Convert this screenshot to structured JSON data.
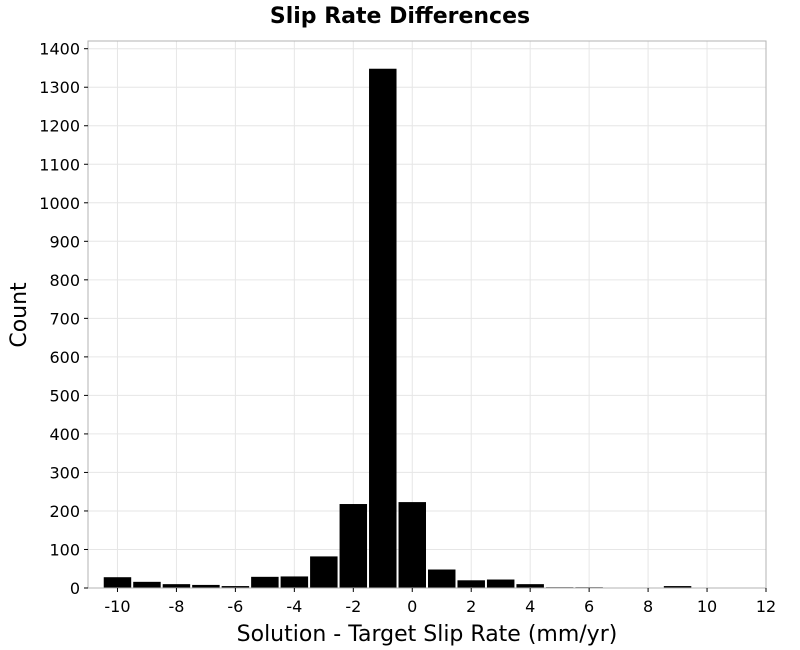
{
  "chart_data": {
    "type": "bar",
    "title": "Slip Rate Differences",
    "xlabel": "Solution - Target Slip Rate (mm/yr)",
    "ylabel": "Count",
    "xlim": [
      -11,
      12
    ],
    "ylim": [
      0,
      1420
    ],
    "x_ticks": [
      -10,
      -8,
      -6,
      -4,
      -2,
      0,
      2,
      4,
      6,
      8,
      10,
      12
    ],
    "y_ticks": [
      0,
      100,
      200,
      300,
      400,
      500,
      600,
      700,
      800,
      900,
      1000,
      1100,
      1200,
      1300,
      1400
    ],
    "bin_width": 1,
    "grid": true,
    "bar_color": "#000000",
    "bins": [
      {
        "x": -10,
        "value": 28
      },
      {
        "x": -9,
        "value": 16
      },
      {
        "x": -8,
        "value": 10
      },
      {
        "x": -7,
        "value": 8
      },
      {
        "x": -6,
        "value": 5
      },
      {
        "x": -5,
        "value": 29
      },
      {
        "x": -4,
        "value": 30
      },
      {
        "x": -3,
        "value": 82
      },
      {
        "x": -2,
        "value": 218
      },
      {
        "x": -1,
        "value": 1348
      },
      {
        "x": 0,
        "value": 223
      },
      {
        "x": 1,
        "value": 48
      },
      {
        "x": 2,
        "value": 20
      },
      {
        "x": 3,
        "value": 22
      },
      {
        "x": 4,
        "value": 10
      },
      {
        "x": 5,
        "value": 2
      },
      {
        "x": 6,
        "value": 2
      },
      {
        "x": 7,
        "value": 1
      },
      {
        "x": 8,
        "value": 0
      },
      {
        "x": 9,
        "value": 5
      },
      {
        "x": 10,
        "value": 0
      }
    ]
  }
}
